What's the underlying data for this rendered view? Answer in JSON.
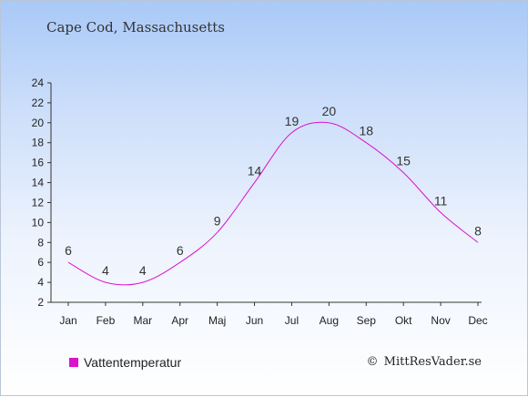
{
  "place": "Cape Cod, Massachusetts",
  "legend_label": "Vattentemperatur",
  "credit": "MittResVader.se",
  "credit_icon": "copyright-icon",
  "colors": {
    "series": "#dd11cc",
    "axis": "#333333",
    "text": "#333333",
    "legend_swatch": "#dd11cc"
  },
  "chart_data": {
    "type": "line",
    "categories": [
      "Jan",
      "Feb",
      "Mar",
      "Apr",
      "Maj",
      "Jun",
      "Jul",
      "Aug",
      "Sep",
      "Okt",
      "Nov",
      "Dec"
    ],
    "series": [
      {
        "name": "Vattentemperatur",
        "values": [
          6,
          4,
          4,
          6,
          9,
          14,
          19,
          20,
          18,
          15,
          11,
          8
        ],
        "labels": [
          "6",
          "4",
          "4",
          "6",
          "9",
          "14",
          "19",
          "20",
          "18",
          "15",
          "11",
          "8"
        ]
      }
    ],
    "yticks": [
      "2",
      "4",
      "6",
      "8",
      "10",
      "12",
      "14",
      "16",
      "18",
      "20",
      "22",
      "24"
    ],
    "ylim": [
      2,
      24
    ],
    "grid": false,
    "legend_position": "bottom-left"
  }
}
